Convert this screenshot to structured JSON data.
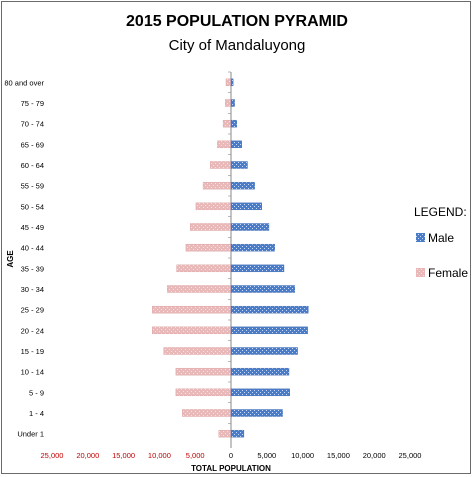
{
  "chart_data": {
    "type": "bar",
    "orientation": "horizontal",
    "title": "2015 POPULATION PYRAMID",
    "subtitle": "City of Mandaluyong",
    "xlabel": "TOTAL POPULATION",
    "ylabel": "AGE",
    "legend_title": "LEGEND:",
    "legend_position": "right",
    "grid": false,
    "xlim": [
      -25000,
      25000
    ],
    "x_ticks": [
      "25,000",
      "20,000",
      "15,000",
      "10,000",
      "5,000",
      "0",
      "5,000",
      "10,000",
      "15,000",
      "20,000",
      "25,000"
    ],
    "categories": [
      "80 and over",
      "75 - 79",
      "70 - 74",
      "65 - 69",
      "60 - 64",
      "55 - 59",
      "50 - 54",
      "45 - 49",
      "40 - 44",
      "35 - 39",
      "30 - 34",
      "25 - 29",
      "20 - 24",
      "15 - 19",
      "10 - 14",
      "5 - 9",
      "1 - 4",
      "Under 1"
    ],
    "series": [
      {
        "name": "Male",
        "color": "#4a7cc8",
        "values": [
          300,
          500,
          800,
          1500,
          2300,
          3300,
          4300,
          5300,
          6100,
          7400,
          8900,
          10800,
          10700,
          9300,
          8100,
          8200,
          7200,
          1800
        ]
      },
      {
        "name": "Female",
        "color": "#e8b4b4",
        "values": [
          -700,
          -800,
          -1100,
          -1900,
          -2900,
          -3900,
          -4900,
          -5700,
          -6300,
          -7600,
          -8900,
          -11000,
          -11000,
          -9400,
          -7700,
          -7700,
          -6800,
          -1700
        ]
      }
    ]
  }
}
